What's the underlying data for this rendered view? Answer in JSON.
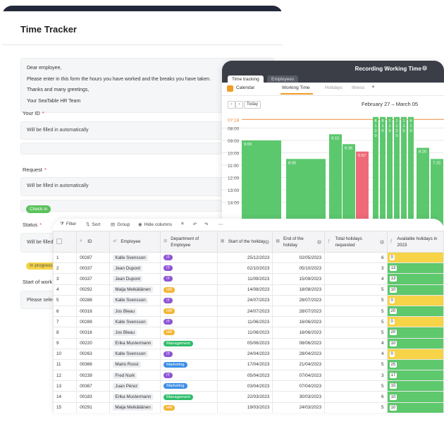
{
  "form": {
    "title": "Time Tracker",
    "intro": [
      "Dear employee,",
      "Please enter in this form the hours you have worked and the breaks you have taken.",
      "Thanks and many greetings,",
      "Your SeaTable HR Team"
    ],
    "your_id_label": "Your ID",
    "your_id_value": "Will be filled in automatically",
    "request_label": "Request",
    "request_value": "Will be filled in automatically",
    "checkin_button": "Check in",
    "status_label": "Status",
    "status_value": "Will be filled",
    "status_option": "In progress",
    "start_label": "Start of work",
    "start_value": "Please select",
    "required_mark": "*"
  },
  "calendar": {
    "title": "Recording Working Time",
    "tabs": [
      "Time tracking",
      "Employees"
    ],
    "app_label": "Calendar",
    "views": [
      "Working Time",
      "Holidays",
      "Illness"
    ],
    "add_view": "+",
    "prev": "‹",
    "next": "›",
    "today": "Today",
    "range": "February 27 – March 05",
    "time_labels": [
      "07:18",
      "08:00",
      "09:00",
      "10:00",
      "11:00",
      "12:00",
      "13:00",
      "14:00"
    ],
    "events": [
      {
        "col": 0,
        "start": 9.0,
        "label": "9:00",
        "color": "#5cc86e"
      },
      {
        "col": 1,
        "start": 10.5,
        "label": "8:00",
        "color": "#5cc86e"
      },
      {
        "col": 2,
        "start": 8.5,
        "label": "9:15",
        "color": "#5cc86e"
      },
      {
        "col": 3,
        "start": 9.3,
        "label": "6:36",
        "color": "#5cc86e"
      },
      {
        "col": 4,
        "start": 9.9,
        "label": "5:57",
        "color": "#ef6a78"
      },
      {
        "col": 5,
        "start": 7.1,
        "label": "8 1 3 0",
        "color": "#5cc86e"
      },
      {
        "col": 6,
        "start": 7.1,
        "label": "8 1 0",
        "color": "#5cc86e"
      },
      {
        "col": 7,
        "start": 7.1,
        "label": "1 1 0",
        "color": "#5cc86e"
      },
      {
        "col": 8,
        "start": 7.1,
        "label": "1 1 3 0",
        "color": "#5cc86e"
      },
      {
        "col": 9,
        "start": 7.1,
        "label": "1 1 0",
        "color": "#5cc86e"
      },
      {
        "col": 10,
        "start": 7.1,
        "label": "8 1 0",
        "color": "#5cc86e"
      },
      {
        "col": 11,
        "start": 9.6,
        "label": "8:20",
        "color": "#5cc86e"
      },
      {
        "col": 12,
        "start": 10.5,
        "label": "7:15",
        "color": "#5cc86e"
      }
    ],
    "colors": {
      "header": "#3b3e47",
      "accent": "#f29b25",
      "now_line": "#f0883c"
    }
  },
  "table": {
    "toolbar": {
      "filter": "Filter",
      "sort": "Sort",
      "group": "Group",
      "hide_columns": "Hide columns"
    },
    "columns": [
      "ID",
      "Employee",
      "Department of Employee",
      "Start of the holiday",
      "End of the holiday",
      "Total holidays requested",
      "Available holidays in 2023"
    ],
    "departments": {
      "IT": "#8e55d4",
      "HR": "#f3b534",
      "Management": "#2fbd6a",
      "Marketing": "#3c8ee6"
    },
    "rows": [
      {
        "n": "1",
        "id": "00287",
        "employee": "Kalle Svensson",
        "dept": "IT",
        "start": "25/12/2023",
        "end": "02/05/2023",
        "total": "6",
        "avail": "0"
      },
      {
        "n": "2",
        "id": "00337",
        "employee": "Jean Dupont",
        "dept": "IT",
        "start": "02/10/2023",
        "end": "05/10/2023",
        "total": "3",
        "avail": "13"
      },
      {
        "n": "3",
        "id": "00337",
        "employee": "Jean Dupont",
        "dept": "IT",
        "start": "11/09/2023",
        "end": "15/09/2023",
        "total": "4",
        "avail": "13"
      },
      {
        "n": "4",
        "id": "00292",
        "employee": "Maija Meikäläinen",
        "dept": "HR",
        "start": "14/08/2023",
        "end": "18/08/2023",
        "total": "5",
        "avail": "10"
      },
      {
        "n": "5",
        "id": "00288",
        "employee": "Kalle Svensson",
        "dept": "IT",
        "start": "24/07/2023",
        "end": "28/07/2023",
        "total": "5",
        "avail": "0"
      },
      {
        "n": "6",
        "id": "00316",
        "employee": "Jos Bleau",
        "dept": "HR",
        "start": "24/07/2023",
        "end": "28/07/2023",
        "total": "5",
        "avail": "20"
      },
      {
        "n": "7",
        "id": "00289",
        "employee": "Kalle Svensson",
        "dept": "IT",
        "start": "11/06/2023",
        "end": "16/06/2023",
        "total": "5",
        "avail": "0"
      },
      {
        "n": "8",
        "id": "00316",
        "employee": "Jos Bleau",
        "dept": "HR",
        "start": "11/06/2023",
        "end": "16/06/2023",
        "total": "5",
        "avail": "20"
      },
      {
        "n": "9",
        "id": "00220",
        "employee": "Erika Mustermann",
        "dept": "Management",
        "start": "05/06/2023",
        "end": "08/06/2023",
        "total": "4",
        "avail": "10"
      },
      {
        "n": "10",
        "id": "00263",
        "employee": "Kalle Svensson",
        "dept": "IT",
        "start": "24/04/2023",
        "end": "28/04/2023",
        "total": "4",
        "avail": "0"
      },
      {
        "n": "11",
        "id": "00366",
        "employee": "Mario Rossi",
        "dept": "Marketing",
        "start": "17/04/2023",
        "end": "21/04/2023",
        "total": "5",
        "avail": "25"
      },
      {
        "n": "12",
        "id": "00239",
        "employee": "Fred Nurk",
        "dept": "IT",
        "start": "05/04/2023",
        "end": "07/04/2023",
        "total": "3",
        "avail": "17"
      },
      {
        "n": "13",
        "id": "00367",
        "employee": "Juan Pérez",
        "dept": "Marketing",
        "start": "03/04/2023",
        "end": "07/04/2023",
        "total": "5",
        "avail": "15"
      },
      {
        "n": "14",
        "id": "00183",
        "employee": "Erika Mustermann",
        "dept": "Management",
        "start": "22/03/2023",
        "end": "30/03/2023",
        "total": "6",
        "avail": "10"
      },
      {
        "n": "15",
        "id": "00291",
        "employee": "Maija Meikäläinen",
        "dept": "HR",
        "start": "19/03/2023",
        "end": "24/03/2023",
        "total": "5",
        "avail": "10"
      }
    ],
    "avail_colors": {
      "zero": "#f6d347",
      "positive": "#5dc86c"
    }
  }
}
